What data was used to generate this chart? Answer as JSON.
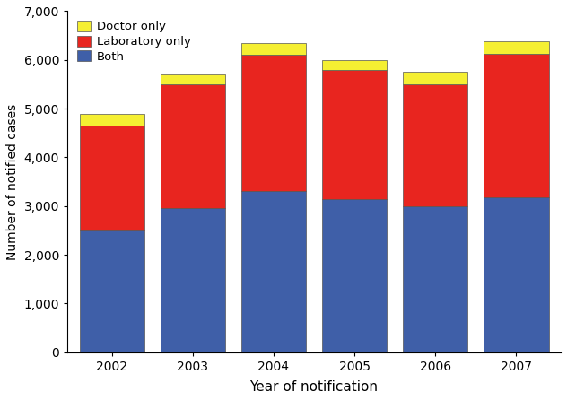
{
  "years": [
    "2002",
    "2003",
    "2004",
    "2005",
    "2006",
    "2007"
  ],
  "both": [
    2500,
    2950,
    3300,
    3150,
    3000,
    3175
  ],
  "lab_only": [
    2150,
    2550,
    2800,
    2650,
    2500,
    2950
  ],
  "doctor_only": [
    250,
    200,
    250,
    200,
    250,
    250
  ],
  "color_both": "#3f5fa8",
  "color_lab": "#e8251f",
  "color_doctor": "#f5ef32",
  "ylabel": "Number of notified cases",
  "xlabel": "Year of notification",
  "ylim": [
    0,
    7000
  ],
  "yticks": [
    0,
    1000,
    2000,
    3000,
    4000,
    5000,
    6000,
    7000
  ],
  "bar_width": 0.8
}
